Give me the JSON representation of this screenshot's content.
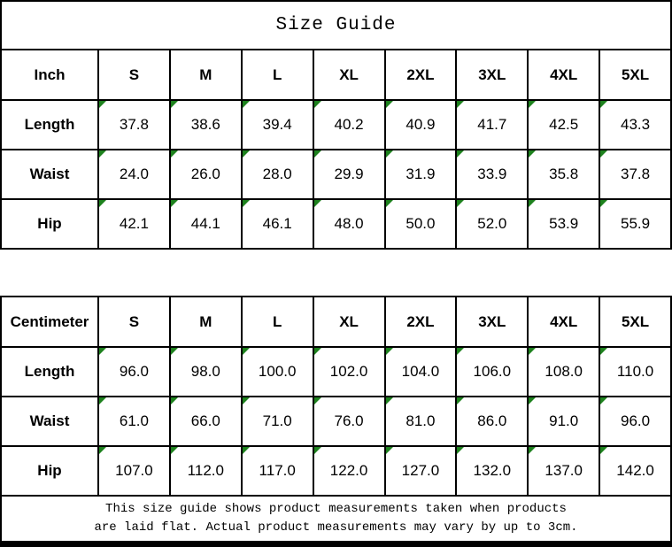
{
  "title": "Size Guide",
  "colors": {
    "background": "#ffffff",
    "border": "#000000",
    "text": "#000000",
    "flag_green": "#1e821e"
  },
  "tables": [
    {
      "unit": "Inch",
      "sizes": [
        "S",
        "M",
        "L",
        "XL",
        "2XL",
        "3XL",
        "4XL",
        "5XL"
      ],
      "rows": [
        {
          "label": "Length",
          "values": [
            "37.8",
            "38.6",
            "39.4",
            "40.2",
            "40.9",
            "41.7",
            "42.5",
            "43.3"
          ]
        },
        {
          "label": "Waist",
          "values": [
            "24.0",
            "26.0",
            "28.0",
            "29.9",
            "31.9",
            "33.9",
            "35.8",
            "37.8"
          ]
        },
        {
          "label": "Hip",
          "values": [
            "42.1",
            "44.1",
            "46.1",
            "48.0",
            "50.0",
            "52.0",
            "53.9",
            "55.9"
          ]
        }
      ]
    },
    {
      "unit": "Centimeter",
      "sizes": [
        "S",
        "M",
        "L",
        "XL",
        "2XL",
        "3XL",
        "4XL",
        "5XL"
      ],
      "rows": [
        {
          "label": "Length",
          "values": [
            "96.0",
            "98.0",
            "100.0",
            "102.0",
            "104.0",
            "106.0",
            "108.0",
            "110.0"
          ]
        },
        {
          "label": "Waist",
          "values": [
            "61.0",
            "66.0",
            "71.0",
            "76.0",
            "81.0",
            "86.0",
            "91.0",
            "96.0"
          ]
        },
        {
          "label": "Hip",
          "values": [
            "107.0",
            "112.0",
            "117.0",
            "122.0",
            "127.0",
            "132.0",
            "137.0",
            "142.0"
          ]
        }
      ]
    }
  ],
  "footer": {
    "line1": "This size guide shows product measurements taken when products",
    "line2": "are laid flat. Actual product measurements may vary by up to 3cm."
  }
}
